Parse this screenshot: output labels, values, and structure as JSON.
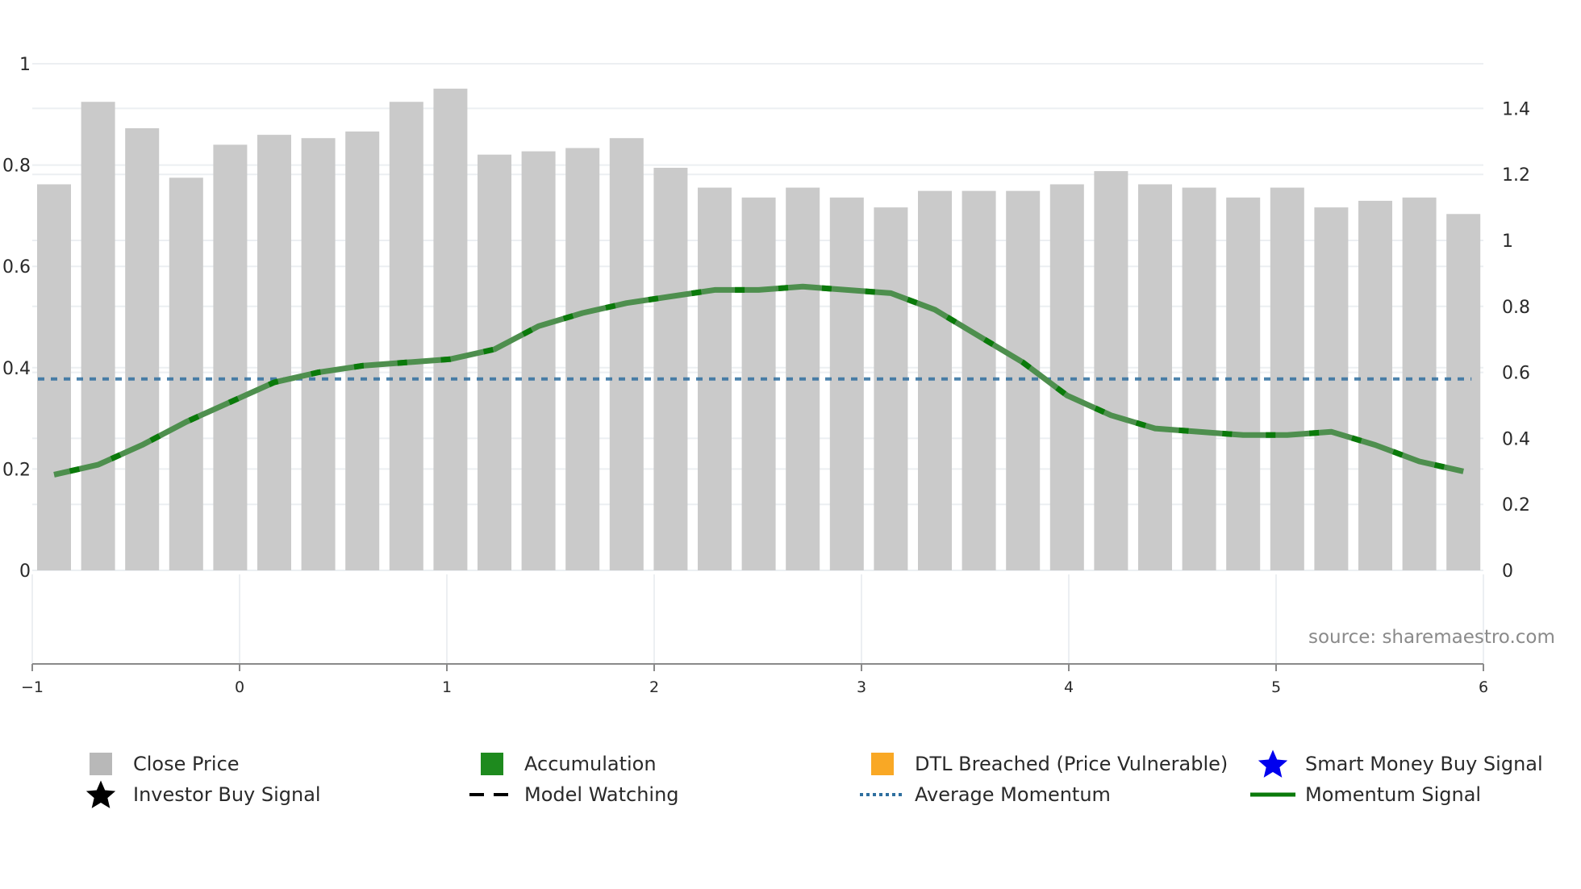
{
  "source_label": "source: sharemaestro.com",
  "legend": [
    {
      "label": "Close Price",
      "icon": "square-swatch",
      "color": "#b8b8b8"
    },
    {
      "label": "Accumulation",
      "icon": "square-swatch",
      "color": "#1e8a1e"
    },
    {
      "label": "DTL Breached (Price Vulnerable)",
      "icon": "square-swatch",
      "color": "#f9a825"
    },
    {
      "label": "Smart Money Buy Signal",
      "icon": "star-icon",
      "color": "#0000ee"
    },
    {
      "label": "Investor Buy Signal",
      "icon": "star-icon",
      "color": "#000000"
    },
    {
      "label": "Model Watching",
      "icon": "dashed-line",
      "color": "#000000"
    },
    {
      "label": "Average Momentum",
      "icon": "dotted-line",
      "color": "#2f6f9f"
    },
    {
      "label": "Momentum Signal",
      "icon": "solid-line",
      "color": "#0a7a0a"
    }
  ],
  "colors": {
    "bar": "#cacaca",
    "momentum": "#4e8f4e",
    "momentum_dash": "#0a7a0a",
    "avg_momentum": "#2f6f9f",
    "grid": "#eceff2",
    "axis": "#8a8a8a"
  },
  "chart_data": {
    "type": "bar",
    "title": "",
    "xlabel": "",
    "ylabel_left": "",
    "ylabel_right": "",
    "x_ticks": [
      "−1",
      "0",
      "1",
      "2",
      "3",
      "4",
      "5",
      "6"
    ],
    "x_range": [
      -1,
      6
    ],
    "left_y_ticks": [
      "0",
      "0.2",
      "0.4",
      "0.6",
      "0.8",
      "1"
    ],
    "left_ylim": [
      0,
      1
    ],
    "right_y_ticks": [
      "0",
      "0.2",
      "0.4",
      "0.6",
      "0.8",
      "1",
      "1.2",
      "1.4"
    ],
    "right_ylim": [
      0,
      1.45
    ],
    "grid": true,
    "legend_position": "bottom",
    "series": [
      {
        "name": "Close Price",
        "type": "bar",
        "axis": "right",
        "values": [
          1.17,
          1.42,
          1.34,
          1.19,
          1.29,
          1.32,
          1.31,
          1.33,
          1.42,
          1.46,
          1.26,
          1.27,
          1.28,
          1.31,
          1.22,
          1.16,
          1.13,
          1.16,
          1.13,
          1.1,
          1.15,
          1.15,
          1.15,
          1.17,
          1.21,
          1.17,
          1.16,
          1.13,
          1.16,
          1.1,
          1.12,
          1.13,
          1.08
        ]
      },
      {
        "name": "Momentum Signal",
        "type": "line",
        "axis": "right",
        "values": [
          0.29,
          0.32,
          0.38,
          0.45,
          0.51,
          0.57,
          0.6,
          0.62,
          0.63,
          0.64,
          0.67,
          0.74,
          0.78,
          0.81,
          0.83,
          0.85,
          0.85,
          0.86,
          0.85,
          0.84,
          0.79,
          0.71,
          0.63,
          0.53,
          0.47,
          0.43,
          0.42,
          0.41,
          0.41,
          0.42,
          0.38,
          0.33,
          0.3
        ]
      },
      {
        "name": "Average Momentum",
        "type": "line",
        "axis": "right",
        "values": [
          0.58
        ]
      }
    ]
  }
}
